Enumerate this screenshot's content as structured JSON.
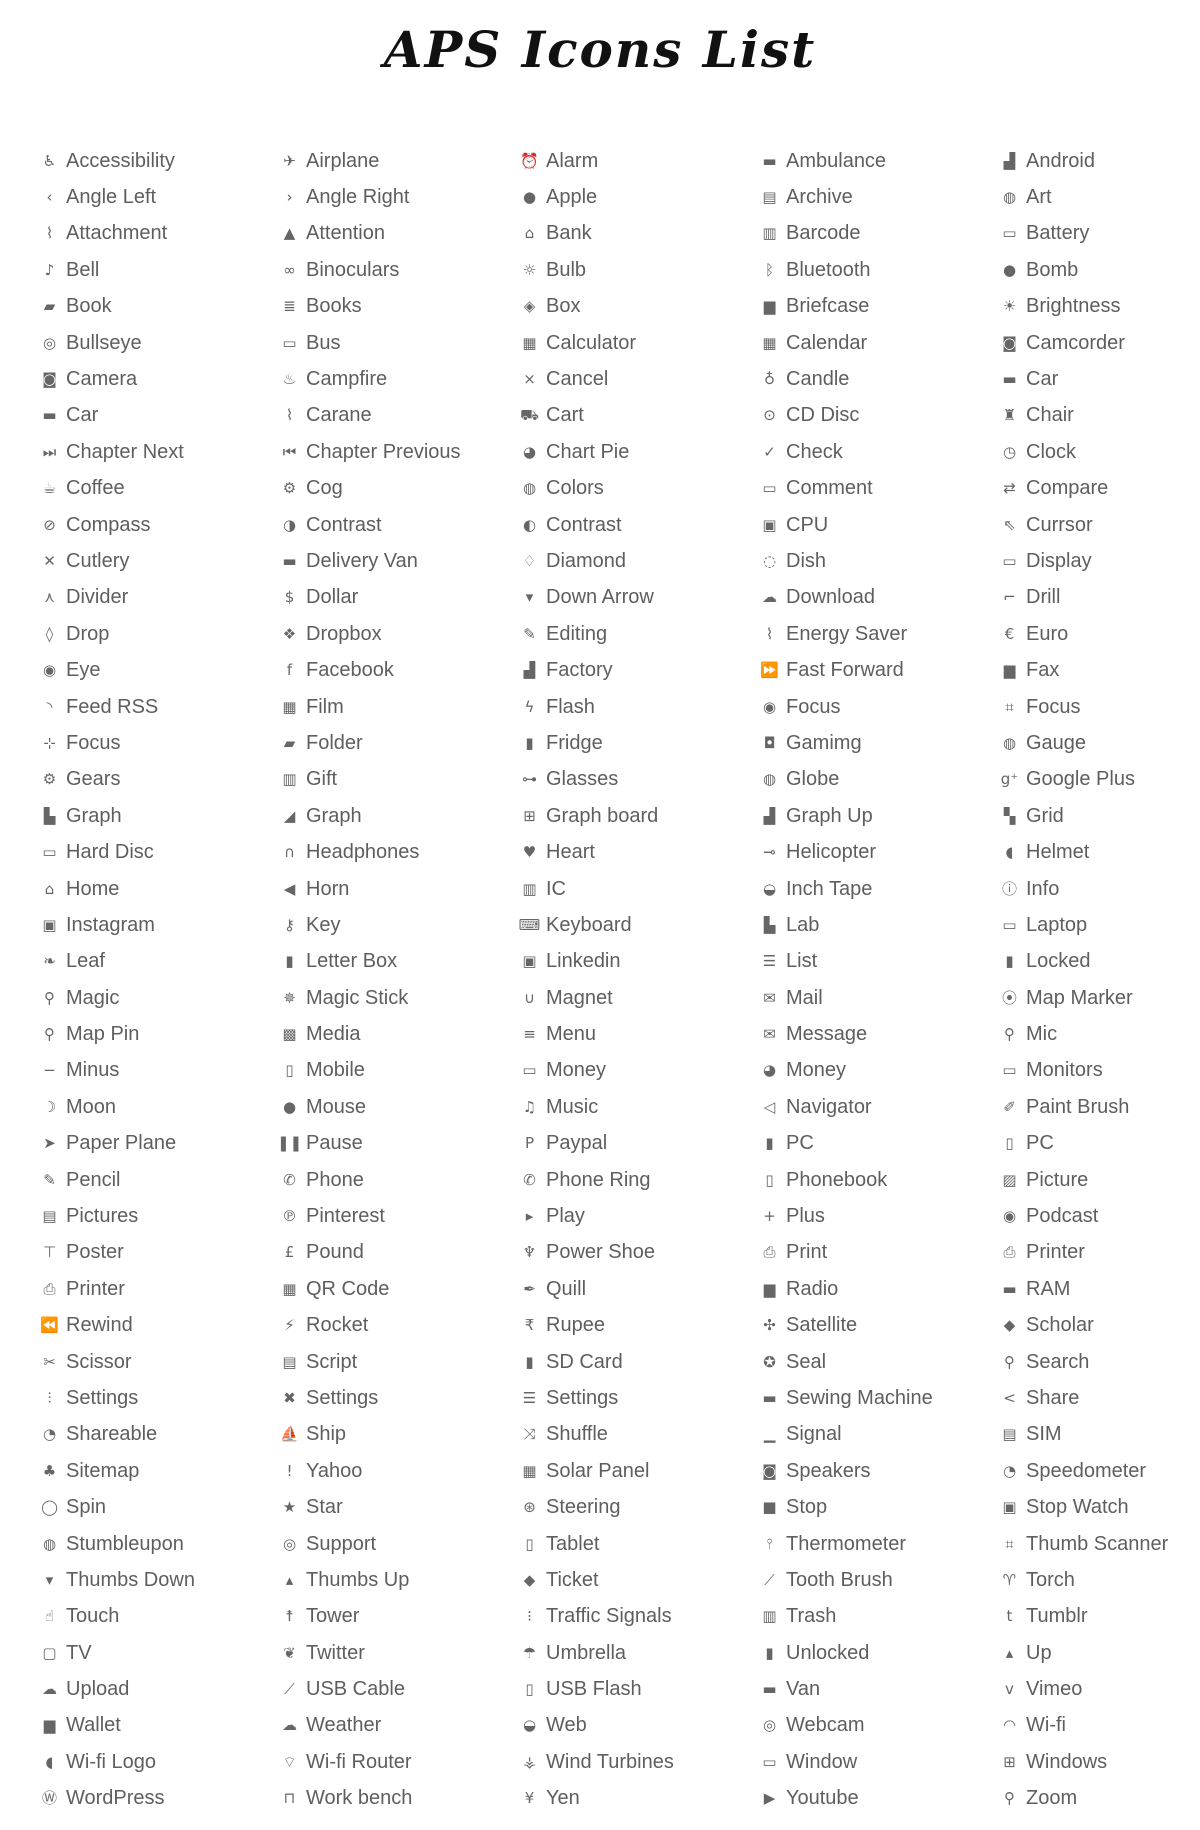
{
  "title": "APS Icons List",
  "icon_color": "#666666",
  "items": [
    {
      "label": "Accessibility",
      "icon": "accessibility-icon"
    },
    {
      "label": "Angle Left",
      "icon": "angle-left-icon"
    },
    {
      "label": "Attachment",
      "icon": "attachment-icon"
    },
    {
      "label": "Bell",
      "icon": "bell-icon"
    },
    {
      "label": "Book",
      "icon": "book-icon"
    },
    {
      "label": "Bullseye",
      "icon": "bullseye-icon"
    },
    {
      "label": "Camera",
      "icon": "camera-icon"
    },
    {
      "label": "Car",
      "icon": "car-icon"
    },
    {
      "label": "Chapter Next",
      "icon": "chapter-next-icon"
    },
    {
      "label": "Coffee",
      "icon": "coffee-icon"
    },
    {
      "label": "Compass",
      "icon": "compass-icon"
    },
    {
      "label": "Cutlery",
      "icon": "cutlery-icon"
    },
    {
      "label": "Divider",
      "icon": "divider-icon"
    },
    {
      "label": "Drop",
      "icon": "drop-icon"
    },
    {
      "label": "Eye",
      "icon": "eye-icon"
    },
    {
      "label": "Feed RSS",
      "icon": "rss-icon"
    },
    {
      "label": "Focus",
      "icon": "focus-icon"
    },
    {
      "label": "Gears",
      "icon": "gears-icon"
    },
    {
      "label": "Graph",
      "icon": "graph-icon"
    },
    {
      "label": "Hard Disc",
      "icon": "hard-disc-icon"
    },
    {
      "label": "Home",
      "icon": "home-icon"
    },
    {
      "label": "Instagram",
      "icon": "instagram-icon"
    },
    {
      "label": "Leaf",
      "icon": "leaf-icon"
    },
    {
      "label": "Magic",
      "icon": "magic-icon"
    },
    {
      "label": "Map Pin",
      "icon": "map-pin-icon"
    },
    {
      "label": "Minus",
      "icon": "minus-icon"
    },
    {
      "label": "Moon",
      "icon": "moon-icon"
    },
    {
      "label": "Paper Plane",
      "icon": "paper-plane-icon"
    },
    {
      "label": "Pencil",
      "icon": "pencil-icon"
    },
    {
      "label": "Pictures",
      "icon": "pictures-icon"
    },
    {
      "label": "Poster",
      "icon": "poster-icon"
    },
    {
      "label": "Printer",
      "icon": "printer-icon"
    },
    {
      "label": "Rewind",
      "icon": "rewind-icon"
    },
    {
      "label": "Scissor",
      "icon": "scissor-icon"
    },
    {
      "label": "Settings",
      "icon": "sliders-icon"
    },
    {
      "label": "Shareable",
      "icon": "shareable-icon"
    },
    {
      "label": "Sitemap",
      "icon": "sitemap-icon"
    },
    {
      "label": "Spin",
      "icon": "spin-icon"
    },
    {
      "label": "Stumbleupon",
      "icon": "stumbleupon-icon"
    },
    {
      "label": "Thumbs Down",
      "icon": "thumbs-down-icon"
    },
    {
      "label": "Touch",
      "icon": "touch-icon"
    },
    {
      "label": "TV",
      "icon": "tv-icon"
    },
    {
      "label": "Upload",
      "icon": "upload-icon"
    },
    {
      "label": "Wallet",
      "icon": "wallet-icon"
    },
    {
      "label": "Wi-fi Logo",
      "icon": "wifi-logo-icon"
    },
    {
      "label": "WordPress",
      "icon": "wordpress-icon"
    },
    {
      "label": "Airplane",
      "icon": "airplane-icon"
    },
    {
      "label": "Angle Right",
      "icon": "angle-right-icon"
    },
    {
      "label": "Attention",
      "icon": "attention-icon"
    },
    {
      "label": "Binoculars",
      "icon": "binoculars-icon"
    },
    {
      "label": "Books",
      "icon": "books-icon"
    },
    {
      "label": "Bus",
      "icon": "bus-icon"
    },
    {
      "label": "Campfire",
      "icon": "campfire-icon"
    },
    {
      "label": "Carane",
      "icon": "crane-icon"
    },
    {
      "label": "Chapter Previous",
      "icon": "chapter-previous-icon"
    },
    {
      "label": "Cog",
      "icon": "cog-icon"
    },
    {
      "label": "Contrast",
      "icon": "contrast-icon"
    },
    {
      "label": "Delivery Van",
      "icon": "delivery-van-icon"
    },
    {
      "label": "Dollar",
      "icon": "dollar-icon"
    },
    {
      "label": "Dropbox",
      "icon": "dropbox-icon"
    },
    {
      "label": "Facebook",
      "icon": "facebook-icon"
    },
    {
      "label": "Film",
      "icon": "film-icon"
    },
    {
      "label": "Folder",
      "icon": "folder-icon"
    },
    {
      "label": "Gift",
      "icon": "gift-icon"
    },
    {
      "label": "Graph",
      "icon": "area-graph-icon"
    },
    {
      "label": "Headphones",
      "icon": "headphones-icon"
    },
    {
      "label": "Horn",
      "icon": "horn-icon"
    },
    {
      "label": "Key",
      "icon": "key-icon"
    },
    {
      "label": "Letter Box",
      "icon": "letter-box-icon"
    },
    {
      "label": "Magic Stick",
      "icon": "magic-stick-icon"
    },
    {
      "label": "Media",
      "icon": "media-icon"
    },
    {
      "label": "Mobile",
      "icon": "mobile-icon"
    },
    {
      "label": "Mouse",
      "icon": "mouse-icon"
    },
    {
      "label": "Pause",
      "icon": "pause-icon"
    },
    {
      "label": "Phone",
      "icon": "phone-icon"
    },
    {
      "label": "Pinterest",
      "icon": "pinterest-icon"
    },
    {
      "label": "Pound",
      "icon": "pound-icon"
    },
    {
      "label": "QR Code",
      "icon": "qr-code-icon"
    },
    {
      "label": "Rocket",
      "icon": "rocket-icon"
    },
    {
      "label": "Script",
      "icon": "script-icon"
    },
    {
      "label": "Settings",
      "icon": "tools-icon"
    },
    {
      "label": "Ship",
      "icon": "ship-icon"
    },
    {
      "label": "Yahoo",
      "icon": "yahoo-icon"
    },
    {
      "label": "Star",
      "icon": "star-icon"
    },
    {
      "label": "Support",
      "icon": "support-icon"
    },
    {
      "label": "Thumbs Up",
      "icon": "thumbs-up-icon"
    },
    {
      "label": "Tower",
      "icon": "tower-icon"
    },
    {
      "label": "Twitter",
      "icon": "twitter-icon"
    },
    {
      "label": "USB Cable",
      "icon": "usb-cable-icon"
    },
    {
      "label": "Weather",
      "icon": "weather-icon"
    },
    {
      "label": "Wi-fi Router",
      "icon": "wifi-router-icon"
    },
    {
      "label": "Work bench",
      "icon": "work-bench-icon"
    },
    {
      "label": "Alarm",
      "icon": "alarm-icon"
    },
    {
      "label": "Apple",
      "icon": "apple-icon"
    },
    {
      "label": "Bank",
      "icon": "bank-icon"
    },
    {
      "label": "Bulb",
      "icon": "bulb-icon"
    },
    {
      "label": "Box",
      "icon": "box-icon"
    },
    {
      "label": "Calculator",
      "icon": "calculator-icon"
    },
    {
      "label": "Cancel",
      "icon": "cancel-icon"
    },
    {
      "label": "Cart",
      "icon": "cart-icon"
    },
    {
      "label": "Chart Pie",
      "icon": "chart-pie-icon"
    },
    {
      "label": "Colors",
      "icon": "colors-icon"
    },
    {
      "label": "Contrast",
      "icon": "contrast-half-icon"
    },
    {
      "label": "Diamond",
      "icon": "diamond-icon"
    },
    {
      "label": "Down Arrow",
      "icon": "down-arrow-icon"
    },
    {
      "label": "Editing",
      "icon": "editing-icon"
    },
    {
      "label": "Factory",
      "icon": "factory-icon"
    },
    {
      "label": "Flash",
      "icon": "flash-icon"
    },
    {
      "label": "Fridge",
      "icon": "fridge-icon"
    },
    {
      "label": "Glasses",
      "icon": "glasses-icon"
    },
    {
      "label": "Graph board",
      "icon": "graph-board-icon"
    },
    {
      "label": "Heart",
      "icon": "heart-icon"
    },
    {
      "label": "IC",
      "icon": "ic-chip-icon"
    },
    {
      "label": "Keyboard",
      "icon": "keyboard-icon"
    },
    {
      "label": "Linkedin",
      "icon": "linkedin-icon"
    },
    {
      "label": "Magnet",
      "icon": "magnet-icon"
    },
    {
      "label": "Menu",
      "icon": "menu-icon"
    },
    {
      "label": "Money",
      "icon": "money-bill-icon"
    },
    {
      "label": "Music",
      "icon": "music-icon"
    },
    {
      "label": "Paypal",
      "icon": "paypal-icon"
    },
    {
      "label": "Phone Ring",
      "icon": "phone-ring-icon"
    },
    {
      "label": "Play",
      "icon": "play-icon"
    },
    {
      "label": "Power Shoe",
      "icon": "power-shoe-icon"
    },
    {
      "label": "Quill",
      "icon": "quill-icon"
    },
    {
      "label": "Rupee",
      "icon": "rupee-icon"
    },
    {
      "label": "SD Card",
      "icon": "sd-card-icon"
    },
    {
      "label": "Settings",
      "icon": "settings-lines-icon"
    },
    {
      "label": "Shuffle",
      "icon": "shuffle-icon"
    },
    {
      "label": "Solar Panel",
      "icon": "solar-panel-icon"
    },
    {
      "label": "Steering",
      "icon": "steering-icon"
    },
    {
      "label": "Tablet",
      "icon": "tablet-icon"
    },
    {
      "label": "Ticket",
      "icon": "ticket-icon"
    },
    {
      "label": "Traffic Signals",
      "icon": "traffic-signals-icon"
    },
    {
      "label": "Umbrella",
      "icon": "umbrella-icon"
    },
    {
      "label": "USB Flash",
      "icon": "usb-flash-icon"
    },
    {
      "label": "Web",
      "icon": "web-icon"
    },
    {
      "label": "Wind Turbines",
      "icon": "wind-turbines-icon"
    },
    {
      "label": "Yen",
      "icon": "yen-icon"
    },
    {
      "label": "Ambulance",
      "icon": "ambulance-icon"
    },
    {
      "label": "Archive",
      "icon": "archive-icon"
    },
    {
      "label": "Barcode",
      "icon": "barcode-icon"
    },
    {
      "label": "Bluetooth",
      "icon": "bluetooth-icon"
    },
    {
      "label": "Briefcase",
      "icon": "briefcase-icon"
    },
    {
      "label": "Calendar",
      "icon": "calendar-icon"
    },
    {
      "label": "Candle",
      "icon": "candle-icon"
    },
    {
      "label": "CD Disc",
      "icon": "cd-disc-icon"
    },
    {
      "label": "Check",
      "icon": "check-icon"
    },
    {
      "label": "Comment",
      "icon": "comment-icon"
    },
    {
      "label": "CPU",
      "icon": "cpu-icon"
    },
    {
      "label": "Dish",
      "icon": "dish-icon"
    },
    {
      "label": "Download",
      "icon": "download-icon"
    },
    {
      "label": "Energy Saver",
      "icon": "energy-saver-icon"
    },
    {
      "label": "Fast Forward",
      "icon": "fast-forward-icon"
    },
    {
      "label": "Focus",
      "icon": "focus-target-icon"
    },
    {
      "label": "Gamimg",
      "icon": "gamepad-icon"
    },
    {
      "label": "Globe",
      "icon": "globe-icon"
    },
    {
      "label": "Graph Up",
      "icon": "graph-up-icon"
    },
    {
      "label": "Helicopter",
      "icon": "helicopter-icon"
    },
    {
      "label": "Inch Tape",
      "icon": "inch-tape-icon"
    },
    {
      "label": "Lab",
      "icon": "lab-icon"
    },
    {
      "label": "List",
      "icon": "list-icon"
    },
    {
      "label": "Mail",
      "icon": "mail-icon"
    },
    {
      "label": "Message",
      "icon": "message-icon"
    },
    {
      "label": "Money",
      "icon": "money-bag-icon"
    },
    {
      "label": "Navigator",
      "icon": "navigator-icon"
    },
    {
      "label": "PC",
      "icon": "pc-tower-icon"
    },
    {
      "label": "Phonebook",
      "icon": "phonebook-icon"
    },
    {
      "label": "Plus",
      "icon": "plus-icon"
    },
    {
      "label": "Print",
      "icon": "print-icon"
    },
    {
      "label": "Radio",
      "icon": "radio-icon"
    },
    {
      "label": "Satellite",
      "icon": "satellite-icon"
    },
    {
      "label": "Seal",
      "icon": "seal-icon"
    },
    {
      "label": "Sewing Machine",
      "icon": "sewing-machine-icon"
    },
    {
      "label": "Signal",
      "icon": "signal-icon"
    },
    {
      "label": "Speakers",
      "icon": "speakers-icon"
    },
    {
      "label": "Stop",
      "icon": "stop-icon"
    },
    {
      "label": "Thermometer",
      "icon": "thermometer-icon"
    },
    {
      "label": "Tooth Brush",
      "icon": "tooth-brush-icon"
    },
    {
      "label": "Trash",
      "icon": "trash-icon"
    },
    {
      "label": "Unlocked",
      "icon": "unlocked-icon"
    },
    {
      "label": "Van",
      "icon": "van-icon"
    },
    {
      "label": "Webcam",
      "icon": "webcam-icon"
    },
    {
      "label": "Window",
      "icon": "window-icon"
    },
    {
      "label": "Youtube",
      "icon": "youtube-icon"
    },
    {
      "label": "Android",
      "icon": "android-icon"
    },
    {
      "label": "Art",
      "icon": "art-icon"
    },
    {
      "label": "Battery",
      "icon": "battery-icon"
    },
    {
      "label": "Bomb",
      "icon": "bomb-icon"
    },
    {
      "label": "Brightness",
      "icon": "brightness-icon"
    },
    {
      "label": "Camcorder",
      "icon": "camcorder-icon"
    },
    {
      "label": "Car",
      "icon": "car-front-icon"
    },
    {
      "label": "Chair",
      "icon": "chair-icon"
    },
    {
      "label": "Clock",
      "icon": "clock-icon"
    },
    {
      "label": "Compare",
      "icon": "compare-icon"
    },
    {
      "label": "Currsor",
      "icon": "cursor-icon"
    },
    {
      "label": "Display",
      "icon": "display-icon"
    },
    {
      "label": "Drill",
      "icon": "drill-icon"
    },
    {
      "label": "Euro",
      "icon": "euro-icon"
    },
    {
      "label": "Fax",
      "icon": "fax-icon"
    },
    {
      "label": "Focus",
      "icon": "focus-frame-icon"
    },
    {
      "label": "Gauge",
      "icon": "gauge-icon"
    },
    {
      "label": "Google Plus",
      "icon": "google-plus-icon"
    },
    {
      "label": "Grid",
      "icon": "grid-icon"
    },
    {
      "label": "Helmet",
      "icon": "helmet-icon"
    },
    {
      "label": "Info",
      "icon": "info-icon"
    },
    {
      "label": "Laptop",
      "icon": "laptop-icon"
    },
    {
      "label": "Locked",
      "icon": "locked-icon"
    },
    {
      "label": "Map Marker",
      "icon": "map-marker-icon"
    },
    {
      "label": "Mic",
      "icon": "mic-icon"
    },
    {
      "label": "Monitors",
      "icon": "monitors-icon"
    },
    {
      "label": "Paint Brush",
      "icon": "paint-brush-icon"
    },
    {
      "label": "PC",
      "icon": "pc-desktop-icon"
    },
    {
      "label": "Picture",
      "icon": "picture-icon"
    },
    {
      "label": "Podcast",
      "icon": "podcast-icon"
    },
    {
      "label": "Printer",
      "icon": "printer-alt-icon"
    },
    {
      "label": "RAM",
      "icon": "ram-icon"
    },
    {
      "label": "Scholar",
      "icon": "scholar-icon"
    },
    {
      "label": "Search",
      "icon": "search-icon"
    },
    {
      "label": "Share",
      "icon": "share-icon"
    },
    {
      "label": "SIM",
      "icon": "sim-icon"
    },
    {
      "label": "Speedometer",
      "icon": "speedometer-icon"
    },
    {
      "label": "Stop Watch",
      "icon": "stop-watch-icon"
    },
    {
      "label": "Thumb Scanner",
      "icon": "thumb-scanner-icon"
    },
    {
      "label": "Torch",
      "icon": "torch-icon"
    },
    {
      "label": "Tumblr",
      "icon": "tumblr-icon"
    },
    {
      "label": "Up",
      "icon": "up-icon"
    },
    {
      "label": "Vimeo",
      "icon": "vimeo-icon"
    },
    {
      "label": "Wi-fi",
      "icon": "wifi-icon"
    },
    {
      "label": "Windows",
      "icon": "windows-icon"
    },
    {
      "label": "Zoom",
      "icon": "zoom-icon"
    }
  ]
}
